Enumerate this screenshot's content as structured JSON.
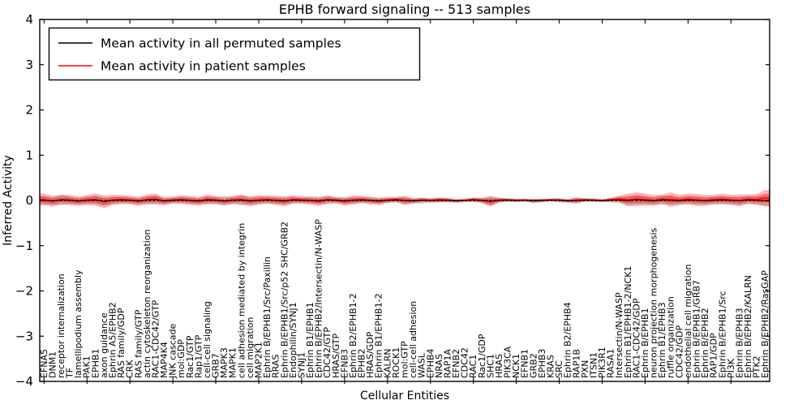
{
  "title": "EPHB forward signaling -- 513 samples",
  "chart_data": {
    "type": "line",
    "title": "EPHB forward signaling -- 513 samples",
    "xlabel": "Cellular Entities",
    "ylabel": "Inferred Activity",
    "ylim": [
      -4,
      4
    ],
    "y_ticks": [
      -4,
      -3,
      -2,
      -1,
      0,
      1,
      2,
      3,
      4
    ],
    "grid": false,
    "legend_position": "upper left",
    "zero_line": {
      "y": 0,
      "style": "dotted",
      "color": "#000000"
    },
    "categories": [
      "EFNA5",
      "DNM1",
      "receptor internalization",
      "TF",
      "lamellipodium assembly",
      "PAK1",
      "EPHB1",
      "axon guidance",
      "Ephrin A5/EPHB2",
      "RAS family/GDP",
      "CRK",
      "RAS family/GTP",
      "actin cytoskeleton reorganization",
      "RAC1-CDC42/GTP",
      "MAP4K4",
      "JNK cascade",
      "mol:GDP",
      "Rac1/GTP",
      "Rap1/GTP",
      "cell-cell signaling",
      "GRB7",
      "MAPK3",
      "MAPK1",
      "cell adhesion mediated by integrin",
      "cell migration",
      "MAP2K1",
      "Ephrin B/EPHB1/Src/Paxillin",
      "RRAS",
      "Ephrin B/EPHB1/Src/p52 SHC/GRB2",
      "Endophilin/SYNJ1",
      "SYNJ1",
      "Ephrin B1/EPHB1",
      "Ephrin B/EPHB2/Intersectin/N-WASP",
      "CDC42/GTP",
      "HRAS/GTP",
      "EFNB3",
      "Ephrin B2/EPHB1-2",
      "EPHB2",
      "HRAS/GDP",
      "Ephrin B1/EPHB1-2",
      "KALRN",
      "ROCK1",
      "mol:GTP",
      "cell-cell adhesion",
      "WASL",
      "EPHB4",
      "NRAS",
      "RAP1A",
      "EFNB2",
      "CDC42",
      "RAC1",
      "Rac1/GDP",
      "SHC1",
      "HRAS",
      "PIK3CA",
      "NCK1",
      "EFNB1",
      "GRB2",
      "EPHB3",
      "KRAS",
      "SRC",
      "Ephrin B2/EPHB4",
      "RAP1B",
      "PXN",
      "ITSN1",
      "PIK3R1",
      "RASA1",
      "Intersectin/N-WASP",
      "Ephrin B1/EPHB1-2/NCK1",
      "RAC1-CDC42/GDP",
      "Ephrin B/EPHB1",
      "neuron projection morphogenesis",
      "Ephrin B1/EPHB3",
      "ruffle organization",
      "CDC42/GDP",
      "endothelial cell migration",
      "Ephrin B/EPHB1/GRB7",
      "Ephrin B/EPHB2",
      "RAP1/GDP",
      "Ephrin B/EPHB1/Src",
      "PI3K",
      "Ephrin B/EPHB3",
      "Ephrin B/EPHB2/KALRN",
      "PTK2",
      "Ephrin B/EPHB2/RasGAP"
    ],
    "series": [
      {
        "name": "Mean activity in all permuted samples",
        "color": "#000000",
        "values": [
          0.0,
          -0.01,
          0.01,
          0.0,
          -0.01,
          0.0,
          0.01,
          -0.02,
          0.0,
          0.01,
          0.0,
          -0.01,
          0.01,
          0.02,
          -0.01,
          0.0,
          0.01,
          0.0,
          -0.01,
          0.01,
          0.0,
          -0.01,
          0.0,
          0.01,
          -0.01,
          0.0,
          0.01,
          0.0,
          -0.01,
          0.01,
          0.0,
          0.0,
          -0.01,
          0.01,
          0.0,
          -0.01,
          0.0,
          0.01,
          0.0,
          -0.01,
          0.0,
          0.01,
          0.0,
          -0.01,
          0.0,
          0.0,
          0.01,
          0.0,
          -0.01,
          0.0,
          0.01,
          0.0,
          -0.02,
          0.0,
          0.01,
          0.0,
          0.0,
          -0.01,
          0.0,
          0.01,
          0.0,
          -0.01,
          0.0,
          0.01,
          0.0,
          -0.01,
          0.0,
          0.01,
          -0.01,
          0.02,
          0.0,
          -0.01,
          0.01,
          0.0,
          -0.01,
          0.01,
          0.0,
          -0.01,
          0.0,
          0.01,
          0.0,
          -0.01,
          0.01,
          0.0,
          -0.01
        ]
      },
      {
        "name": "Mean activity in patient samples",
        "color": "#ff0000",
        "values": [
          0.02,
          -0.02,
          0.02,
          0.01,
          -0.02,
          0.01,
          0.02,
          -0.03,
          0.01,
          0.02,
          0.01,
          -0.02,
          0.02,
          0.03,
          -0.02,
          0.01,
          0.02,
          0.0,
          -0.02,
          0.02,
          0.01,
          -0.02,
          0.01,
          0.02,
          -0.02,
          0.01,
          0.02,
          0.0,
          -0.02,
          0.02,
          0.01,
          0.0,
          -0.02,
          0.02,
          0.01,
          -0.02,
          0.01,
          0.02,
          0.0,
          -0.02,
          0.01,
          0.02,
          0.0,
          -0.01,
          0.01,
          0.0,
          0.01,
          0.01,
          -0.01,
          0.0,
          0.02,
          0.0,
          -0.02,
          0.01,
          0.01,
          0.0,
          0.01,
          -0.01,
          0.0,
          0.01,
          0.01,
          -0.01,
          0.0,
          0.01,
          0.01,
          0.0,
          0.02,
          0.03,
          0.01,
          0.03,
          0.02,
          0.0,
          0.03,
          0.02,
          0.01,
          0.03,
          0.01,
          0.0,
          0.02,
          0.03,
          0.01,
          0.0,
          0.03,
          0.02,
          0.05
        ]
      }
    ],
    "bands": [
      {
        "series": "Mean activity in all permuted samples",
        "color": "#808080",
        "opacity": 0.35,
        "half_width": [
          0.09,
          0.08,
          0.12,
          0.08,
          0.07,
          0.08,
          0.09,
          0.09,
          0.08,
          0.07,
          0.07,
          0.07,
          0.08,
          0.09,
          0.07,
          0.06,
          0.07,
          0.07,
          0.07,
          0.08,
          0.07,
          0.11,
          0.07,
          0.12,
          0.08,
          0.08,
          0.07,
          0.07,
          0.08,
          0.07,
          0.06,
          0.07,
          0.07,
          0.1,
          0.06,
          0.07,
          0.07,
          0.06,
          0.09,
          0.06,
          0.05,
          0.05,
          0.08,
          0.05,
          0.07,
          0.04,
          0.05,
          0.04,
          0.03,
          0.03,
          0.04,
          0.05,
          0.09,
          0.06,
          0.03,
          0.03,
          0.03,
          0.05,
          0.03,
          0.03,
          0.05,
          0.03,
          0.06,
          0.03,
          0.03,
          0.03,
          0.05,
          0.06,
          0.09,
          0.1,
          0.09,
          0.08,
          0.1,
          0.1,
          0.08,
          0.08,
          0.09,
          0.08,
          0.09,
          0.08,
          0.08,
          0.09,
          0.09,
          0.08,
          0.11
        ]
      },
      {
        "series": "Mean activity in patient samples",
        "color": "#ff0000",
        "opacity": 0.3,
        "half_width": [
          0.13,
          0.12,
          0.1,
          0.11,
          0.1,
          0.11,
          0.13,
          0.14,
          0.11,
          0.1,
          0.09,
          0.1,
          0.11,
          0.12,
          0.09,
          0.08,
          0.09,
          0.1,
          0.09,
          0.11,
          0.09,
          0.08,
          0.09,
          0.1,
          0.11,
          0.1,
          0.09,
          0.1,
          0.11,
          0.09,
          0.08,
          0.09,
          0.1,
          0.08,
          0.07,
          0.09,
          0.1,
          0.08,
          0.07,
          0.08,
          0.07,
          0.06,
          0.1,
          0.06,
          0.05,
          0.05,
          0.06,
          0.05,
          0.04,
          0.04,
          0.05,
          0.06,
          0.12,
          0.05,
          0.04,
          0.04,
          0.03,
          0.04,
          0.04,
          0.03,
          0.04,
          0.04,
          0.07,
          0.04,
          0.04,
          0.03,
          0.04,
          0.08,
          0.14,
          0.15,
          0.13,
          0.12,
          0.1,
          0.16,
          0.11,
          0.12,
          0.13,
          0.12,
          0.1,
          0.12,
          0.11,
          0.13,
          0.1,
          0.12,
          0.18
        ]
      }
    ]
  }
}
